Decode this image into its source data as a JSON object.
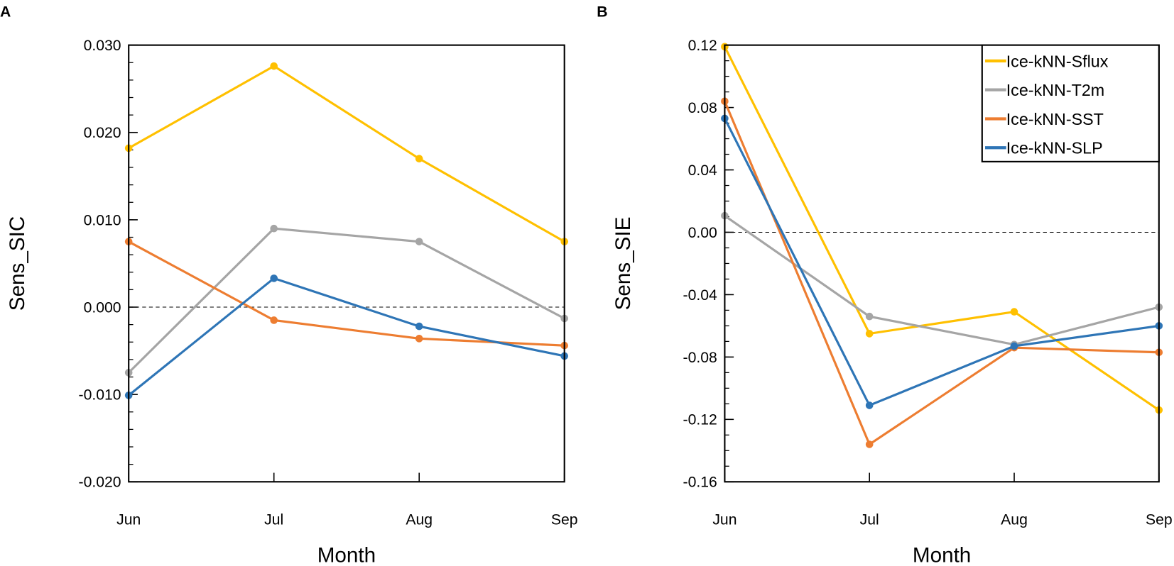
{
  "chart_data": [
    {
      "panel": "A",
      "type": "line",
      "title": "",
      "xlabel": "Month",
      "ylabel": "Sens_SIC",
      "categories": [
        "Jun",
        "Jul",
        "Aug",
        "Sep"
      ],
      "ylim": [
        -0.02,
        0.03
      ],
      "yticks": [
        0.03,
        0.02,
        0.01,
        0.0,
        -0.01,
        -0.02
      ],
      "ytick_labels": [
        "0.030",
        "0.020",
        "0.010",
        "0.000",
        "-0.010",
        "-0.020"
      ],
      "minor_step": 0.002,
      "reference_line": 0,
      "series": [
        {
          "name": "Ice-kNN-Sflux",
          "color": "#FFC000",
          "values": [
            0.0182,
            0.0276,
            0.017,
            0.0075
          ]
        },
        {
          "name": "Ice-kNN-T2m",
          "color": "#A5A5A5",
          "values": [
            -0.0075,
            0.009,
            0.0075,
            -0.0013
          ]
        },
        {
          "name": "Ice-kNN-SST",
          "color": "#ED7D31",
          "values": [
            0.0075,
            -0.0015,
            -0.0036,
            -0.0044
          ]
        },
        {
          "name": "Ice-kNN-SLP",
          "color": "#2E75B6",
          "values": [
            -0.0101,
            0.0033,
            -0.0022,
            -0.0056
          ]
        }
      ]
    },
    {
      "panel": "B",
      "type": "line",
      "title": "",
      "xlabel": "Month",
      "ylabel": "Sens_SIE",
      "categories": [
        "Jun",
        "Jul",
        "Aug",
        "Sep"
      ],
      "ylim": [
        -0.16,
        0.12
      ],
      "yticks": [
        0.12,
        0.08,
        0.04,
        0.0,
        -0.04,
        -0.08,
        -0.12,
        -0.16
      ],
      "ytick_labels": [
        "0.12",
        "0.08",
        "0.04",
        "0.00",
        "-0.04",
        "-0.08",
        "-0.12",
        "-0.16"
      ],
      "minor_step": 0.01,
      "reference_line": 0,
      "legend": "top-right",
      "series": [
        {
          "name": "Ice-kNN-Sflux",
          "color": "#FFC000",
          "values": [
            0.119,
            -0.065,
            -0.051,
            -0.114
          ]
        },
        {
          "name": "Ice-kNN-T2m",
          "color": "#A5A5A5",
          "values": [
            0.0106,
            -0.054,
            -0.072,
            -0.048
          ]
        },
        {
          "name": "Ice-kNN-SST",
          "color": "#ED7D31",
          "values": [
            0.084,
            -0.136,
            -0.074,
            -0.077
          ]
        },
        {
          "name": "Ice-kNN-SLP",
          "color": "#2E75B6",
          "values": [
            0.073,
            -0.111,
            -0.073,
            -0.06
          ]
        }
      ]
    }
  ]
}
